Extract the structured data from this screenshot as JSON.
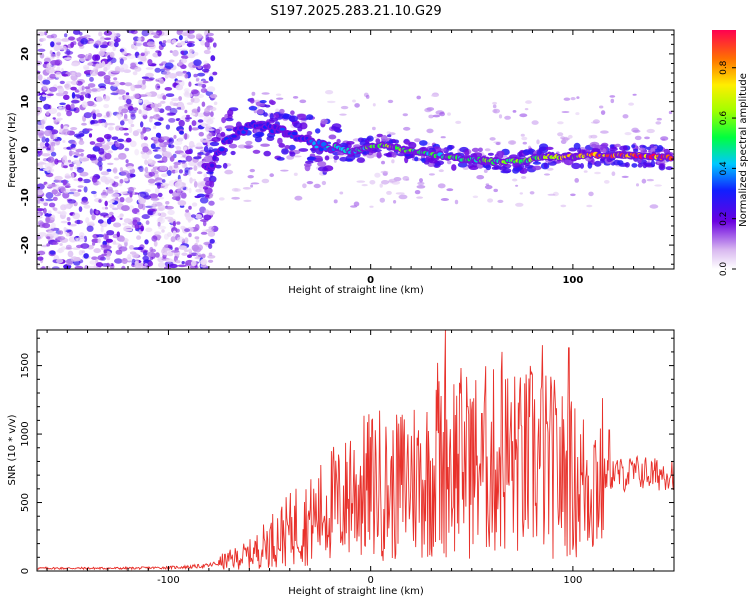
{
  "title": "S197.2025.283.21.10.G29",
  "chart_data": [
    {
      "type": "heatmap",
      "xlabel": "Height of straight line (km)",
      "ylabel": "Frequency (Hz)",
      "xlim": [
        -165,
        150
      ],
      "ylim": [
        -25,
        25
      ],
      "x_ticks": [
        -100,
        0,
        100
      ],
      "x_tick_labels": [
        "-100",
        "0",
        "100"
      ],
      "y_ticks": [
        -20,
        -10,
        0,
        10,
        20
      ],
      "y_tick_labels": [
        "-20",
        "-10",
        "0",
        "10",
        "20"
      ],
      "noise_region_x": [
        -165,
        -80
      ],
      "ridge": {
        "x": [
          -82,
          -78,
          -72,
          -65,
          -58,
          -52,
          -46,
          -40,
          -34,
          -28,
          -22,
          -15,
          -8,
          0,
          8,
          15,
          22,
          30,
          38,
          45,
          52,
          60,
          68,
          76,
          84,
          92,
          100,
          108,
          116,
          124,
          132,
          140,
          148
        ],
        "frequency": [
          -4,
          -2.5,
          1.5,
          4,
          5,
          5,
          4,
          3,
          2.5,
          1,
          0.5,
          0,
          -0.5,
          0.5,
          1,
          0,
          -0.5,
          -1,
          -1.5,
          -2,
          -2,
          -2.5,
          -2.5,
          -2.5,
          -1.5,
          -1.5,
          -1.5,
          -1.2,
          -1.2,
          -1.2,
          -1.2,
          -1.4,
          -1.8
        ],
        "amplitude": [
          0.25,
          0.3,
          0.3,
          0.3,
          0.3,
          0.3,
          0.3,
          0.3,
          0.32,
          0.35,
          0.4,
          0.45,
          0.5,
          0.55,
          0.62,
          0.55,
          0.5,
          0.5,
          0.5,
          0.5,
          0.5,
          0.55,
          0.55,
          0.55,
          0.6,
          0.7,
          0.72,
          0.8,
          0.85,
          0.85,
          0.88,
          0.9,
          0.92
        ]
      },
      "colorbar": {
        "label": "Normalized spectral amplitude",
        "range": [
          0,
          0.95
        ],
        "ticks": [
          0.0,
          0.2,
          0.4,
          0.6,
          0.8
        ],
        "tick_labels": [
          "0.0",
          "0.2",
          "0.4",
          "0.6",
          "0.8"
        ]
      }
    },
    {
      "type": "line",
      "xlabel": "Height of straight line (km)",
      "ylabel": "SNR (10 * v/v)",
      "xlim": [
        -165,
        150
      ],
      "ylim": [
        0,
        1760
      ],
      "x_ticks": [
        -100,
        0,
        100
      ],
      "x_tick_labels": [
        "-100",
        "0",
        "100"
      ],
      "y_ticks": [
        0,
        500,
        1000,
        1500
      ],
      "y_tick_labels": [
        "0",
        "500",
        "1000",
        "1500"
      ],
      "color": "#e8302a",
      "series": [
        {
          "name": "SNR",
          "x": [
            -165,
            -140,
            -120,
            -100,
            -90,
            -80,
            -70,
            -60,
            -55,
            -50,
            -45,
            -40,
            -35,
            -30,
            -25,
            -20,
            -15,
            -10,
            -5,
            0,
            5,
            10,
            15,
            20,
            25,
            30,
            35,
            40,
            45,
            50,
            55,
            60,
            65,
            70,
            75,
            80,
            85,
            90,
            95,
            100,
            105,
            110,
            115,
            120,
            125,
            130,
            135,
            140,
            145,
            150
          ],
          "values": [
            20,
            20,
            20,
            25,
            30,
            40,
            80,
            120,
            160,
            220,
            260,
            300,
            350,
            360,
            420,
            500,
            480,
            560,
            600,
            620,
            640,
            560,
            640,
            700,
            660,
            720,
            780,
            820,
            800,
            760,
            820,
            780,
            840,
            800,
            760,
            820,
            780,
            760,
            700,
            660,
            640,
            680,
            700,
            720,
            700,
            720,
            720,
            700,
            720,
            720
          ],
          "peaks": [
            {
              "x": -37,
              "value": 600
            },
            {
              "x": -10,
              "value": 950
            },
            {
              "x": 33,
              "value": 1520
            },
            {
              "x": 37,
              "value": 1760
            },
            {
              "x": 48,
              "value": 1200
            },
            {
              "x": 55,
              "value": 1150
            },
            {
              "x": 65,
              "value": 1600
            },
            {
              "x": 73,
              "value": 1230
            },
            {
              "x": 85,
              "value": 1650
            },
            {
              "x": 98,
              "value": 1630
            },
            {
              "x": 118,
              "value": 1030
            }
          ]
        }
      ]
    }
  ]
}
